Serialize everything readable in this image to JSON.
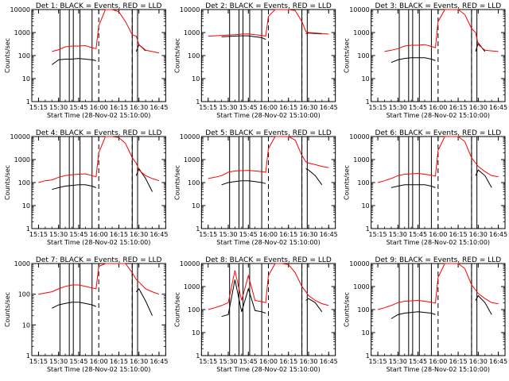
{
  "x_tick_labels": [
    "15:15",
    "15:30",
    "15:45",
    "16:00",
    "16:15",
    "16:30",
    "16:45"
  ],
  "y_tick_labels": [
    "1",
    "10",
    "100",
    "1000",
    "10000"
  ],
  "xlabel": "Start Time (28-Nov-02 15:10:00)",
  "ylabel": "Counts/sec",
  "colors": {
    "events": "#000000",
    "lld": "#ff0000"
  },
  "chart_data": [
    {
      "type": "line",
      "title": "Det 1: BLACK = Events, RED = LLD",
      "xlabel": "Start Time (28-Nov-02 15:10:00)",
      "ylabel": "Counts/sec",
      "xlim": [
        "15:10",
        "16:50"
      ],
      "ylim": [
        1,
        10000
      ],
      "yscale": "log",
      "x": [
        "15:20",
        "15:25",
        "15:30",
        "15:35",
        "15:40",
        "15:45",
        "15:50",
        "15:55",
        "15:58",
        "16:00",
        "16:05",
        "16:10",
        "16:15",
        "16:20",
        "16:25",
        "16:28",
        "16:30",
        "16:35",
        "16:40",
        "16:45"
      ],
      "series": [
        {
          "name": "Events",
          "color": "#000000",
          "values": [
            null,
            40,
            65,
            70,
            70,
            75,
            70,
            65,
            60,
            null,
            null,
            null,
            null,
            null,
            null,
            150,
            300,
            160,
            null,
            null
          ]
        },
        {
          "name": "LLD",
          "color": "#ff0000",
          "values": [
            null,
            150,
            180,
            240,
            260,
            260,
            270,
            220,
            200,
            2000,
            10000,
            10000,
            8000,
            3000,
            800,
            700,
            300,
            170,
            150,
            130
          ]
        }
      ],
      "vertical_lines": [
        "15:31",
        "15:38",
        "15:41",
        "15:46",
        "15:55",
        "16:25",
        "16:29"
      ],
      "dashed_lines": [
        "16:00",
        "16:25"
      ]
    },
    {
      "type": "line",
      "title": "Det 2: BLACK = Events, RED = LLD",
      "xlabel": "Start Time (28-Nov-02 15:10:00)",
      "ylabel": "Counts/sec",
      "xlim": [
        "15:10",
        "16:50"
      ],
      "ylim": [
        1,
        10000
      ],
      "yscale": "log",
      "x": [
        "15:15",
        "15:20",
        "15:25",
        "15:30",
        "15:35",
        "15:40",
        "15:45",
        "15:50",
        "15:55",
        "15:58",
        "16:00",
        "16:05",
        "16:10",
        "16:15",
        "16:20",
        "16:25",
        "16:28",
        "16:30",
        "16:35",
        "16:40",
        "16:45"
      ],
      "series": [
        {
          "name": "Events",
          "color": "#000000",
          "values": [
            null,
            null,
            650,
            680,
            700,
            720,
            720,
            650,
            600,
            500,
            null,
            null,
            null,
            null,
            null,
            null,
            900,
            950,
            900,
            880,
            null
          ]
        },
        {
          "name": "LLD",
          "color": "#ff0000",
          "values": [
            700,
            720,
            750,
            780,
            800,
            850,
            870,
            800,
            750,
            700,
            5000,
            10000,
            10000,
            10000,
            9000,
            3000,
            1100,
            1000,
            950,
            900,
            850
          ]
        }
      ],
      "vertical_lines": [
        "15:31",
        "15:38",
        "15:41",
        "15:46",
        "15:55",
        "16:25",
        "16:29"
      ],
      "dashed_lines": [
        "16:00",
        "16:25"
      ]
    },
    {
      "type": "line",
      "title": "Det 3: BLACK = Events, RED = LLD",
      "xlabel": "Start Time (28-Nov-02 15:10:00)",
      "ylabel": "Counts/sec",
      "xlim": [
        "15:10",
        "16:50"
      ],
      "ylim": [
        1,
        10000
      ],
      "yscale": "log",
      "x": [
        "15:20",
        "15:25",
        "15:30",
        "15:35",
        "15:40",
        "15:45",
        "15:50",
        "15:55",
        "15:58",
        "16:00",
        "16:05",
        "16:10",
        "16:15",
        "16:20",
        "16:25",
        "16:28",
        "16:30",
        "16:35",
        "16:40",
        "16:45"
      ],
      "series": [
        {
          "name": "Events",
          "color": "#000000",
          "values": [
            null,
            50,
            65,
            75,
            80,
            80,
            80,
            70,
            60,
            null,
            null,
            null,
            null,
            null,
            null,
            150,
            350,
            150,
            null,
            null
          ]
        },
        {
          "name": "LLD",
          "color": "#ff0000",
          "values": [
            150,
            170,
            200,
            260,
            280,
            280,
            300,
            250,
            220,
            3000,
            10000,
            10000,
            10000,
            6000,
            1500,
            1000,
            300,
            170,
            160,
            150
          ]
        }
      ],
      "vertical_lines": [
        "15:31",
        "15:38",
        "15:41",
        "15:46",
        "15:55",
        "16:25",
        "16:29"
      ],
      "dashed_lines": [
        "16:00",
        "16:25"
      ]
    },
    {
      "type": "line",
      "title": "Det 4: BLACK = Events, RED = LLD",
      "xlabel": "Start Time (28-Nov-02 15:10:00)",
      "ylabel": "Counts/sec",
      "xlim": [
        "15:10",
        "16:50"
      ],
      "ylim": [
        1,
        10000
      ],
      "yscale": "log",
      "x": [
        "15:15",
        "15:20",
        "15:25",
        "15:30",
        "15:35",
        "15:40",
        "15:45",
        "15:50",
        "15:55",
        "15:58",
        "16:00",
        "16:05",
        "16:10",
        "16:15",
        "16:20",
        "16:25",
        "16:28",
        "16:30",
        "16:35",
        "16:40",
        "16:45"
      ],
      "series": [
        {
          "name": "Events",
          "color": "#000000",
          "values": [
            null,
            null,
            50,
            60,
            70,
            75,
            80,
            80,
            70,
            60,
            null,
            null,
            null,
            null,
            null,
            null,
            200,
            400,
            150,
            40,
            null
          ]
        },
        {
          "name": "LLD",
          "color": "#ff0000",
          "values": [
            100,
            120,
            130,
            170,
            200,
            220,
            230,
            240,
            200,
            180,
            2000,
            10000,
            10000,
            9000,
            5000,
            1200,
            700,
            350,
            200,
            150,
            120
          ]
        }
      ],
      "vertical_lines": [
        "15:31",
        "15:38",
        "15:41",
        "15:46",
        "15:55",
        "16:25",
        "16:29"
      ],
      "dashed_lines": [
        "16:00",
        "16:25"
      ]
    },
    {
      "type": "line",
      "title": "Det 5: BLACK = Events, RED = LLD",
      "xlabel": "Start Time (28-Nov-02 15:10:00)",
      "ylabel": "Counts/sec",
      "xlim": [
        "15:10",
        "16:50"
      ],
      "ylim": [
        1,
        10000
      ],
      "yscale": "log",
      "x": [
        "15:15",
        "15:20",
        "15:25",
        "15:30",
        "15:35",
        "15:40",
        "15:45",
        "15:50",
        "15:55",
        "15:58",
        "16:00",
        "16:05",
        "16:10",
        "16:15",
        "16:20",
        "16:25",
        "16:28",
        "16:30",
        "16:35",
        "16:40",
        "16:45"
      ],
      "series": [
        {
          "name": "Events",
          "color": "#000000",
          "values": [
            null,
            null,
            80,
            100,
            110,
            120,
            120,
            110,
            100,
            90,
            null,
            null,
            null,
            null,
            null,
            null,
            400,
            350,
            200,
            80,
            null
          ]
        },
        {
          "name": "LLD",
          "color": "#ff0000",
          "values": [
            150,
            170,
            200,
            280,
            320,
            330,
            340,
            320,
            300,
            280,
            3000,
            10000,
            10000,
            10000,
            7000,
            1500,
            800,
            700,
            600,
            500,
            450
          ]
        }
      ],
      "vertical_lines": [
        "15:31",
        "15:38",
        "15:41",
        "15:46",
        "15:55",
        "16:25",
        "16:29"
      ],
      "dashed_lines": [
        "16:00",
        "16:25"
      ]
    },
    {
      "type": "line",
      "title": "Det 6: BLACK = Events, RED = LLD",
      "xlabel": "Start Time (28-Nov-02 15:10:00)",
      "ylabel": "Counts/sec",
      "xlim": [
        "15:10",
        "16:50"
      ],
      "ylim": [
        1,
        10000
      ],
      "yscale": "log",
      "x": [
        "15:15",
        "15:20",
        "15:25",
        "15:30",
        "15:35",
        "15:40",
        "15:45",
        "15:50",
        "15:55",
        "15:58",
        "16:00",
        "16:05",
        "16:10",
        "16:15",
        "16:20",
        "16:25",
        "16:28",
        "16:30",
        "16:35",
        "16:40",
        "16:45"
      ],
      "series": [
        {
          "name": "Events",
          "color": "#000000",
          "values": [
            null,
            null,
            60,
            70,
            80,
            80,
            80,
            80,
            70,
            60,
            null,
            null,
            null,
            null,
            null,
            null,
            200,
            350,
            200,
            60,
            null
          ]
        },
        {
          "name": "LLD",
          "color": "#ff0000",
          "values": [
            100,
            120,
            150,
            200,
            230,
            240,
            250,
            230,
            210,
            190,
            2500,
            10000,
            10000,
            10000,
            6000,
            1200,
            700,
            500,
            300,
            200,
            180
          ]
        }
      ],
      "vertical_lines": [
        "15:31",
        "15:38",
        "15:41",
        "15:46",
        "15:55",
        "16:25",
        "16:29"
      ],
      "dashed_lines": [
        "16:00",
        "16:25"
      ]
    },
    {
      "type": "line",
      "title": "Det 7: BLACK = Events, RED = LLD",
      "xlabel": "Start Time (28-Nov-02 15:10:00)",
      "ylabel": "Counts/sec",
      "xlim": [
        "15:10",
        "16:50"
      ],
      "ylim": [
        1,
        1000
      ],
      "yscale": "log",
      "x": [
        "15:15",
        "15:20",
        "15:25",
        "15:30",
        "15:35",
        "15:40",
        "15:45",
        "15:50",
        "15:55",
        "15:58",
        "16:00",
        "16:05",
        "16:10",
        "16:15",
        "16:20",
        "16:25",
        "16:28",
        "16:30",
        "16:35",
        "16:40",
        "16:45"
      ],
      "series": [
        {
          "name": "Events",
          "color": "#000000",
          "values": [
            null,
            null,
            35,
            45,
            50,
            55,
            55,
            50,
            45,
            40,
            null,
            null,
            null,
            null,
            null,
            null,
            120,
            150,
            60,
            20,
            null
          ]
        },
        {
          "name": "LLD",
          "color": "#ff0000",
          "values": [
            100,
            110,
            120,
            150,
            180,
            200,
            200,
            180,
            160,
            150,
            800,
            1000,
            1000,
            1000,
            1000,
            500,
            300,
            250,
            150,
            120,
            100
          ]
        }
      ],
      "vertical_lines": [
        "15:31",
        "15:38",
        "15:41",
        "15:46",
        "15:55",
        "16:25",
        "16:29"
      ],
      "dashed_lines": [
        "16:00",
        "16:25"
      ]
    },
    {
      "type": "line",
      "title": "Det 8: BLACK = Events, RED = LLD",
      "xlabel": "Start Time (28-Nov-02 15:10:00)",
      "ylabel": "Counts/sec",
      "xlim": [
        "15:10",
        "16:50"
      ],
      "ylim": [
        1,
        10000
      ],
      "yscale": "log",
      "x": [
        "15:15",
        "15:20",
        "15:25",
        "15:30",
        "15:35",
        "15:40",
        "15:45",
        "15:50",
        "15:55",
        "15:58",
        "16:00",
        "16:05",
        "16:10",
        "16:15",
        "16:20",
        "16:25",
        "16:28",
        "16:30",
        "16:35",
        "16:40",
        "16:45"
      ],
      "series": [
        {
          "name": "Events",
          "color": "#000000",
          "values": [
            null,
            null,
            50,
            60,
            2000,
            80,
            800,
            90,
            80,
            70,
            null,
            null,
            null,
            null,
            null,
            null,
            250,
            300,
            200,
            80,
            null
          ]
        },
        {
          "name": "LLD",
          "color": "#ff0000",
          "values": [
            100,
            120,
            150,
            200,
            5000,
            250,
            3000,
            250,
            220,
            200,
            3000,
            10000,
            10000,
            9000,
            4000,
            1000,
            600,
            400,
            250,
            180,
            150
          ]
        }
      ],
      "vertical_lines": [
        "15:31",
        "15:38",
        "15:41",
        "15:46",
        "15:55",
        "16:25",
        "16:29"
      ],
      "dashed_lines": [
        "16:00",
        "16:25"
      ]
    },
    {
      "type": "line",
      "title": "Det 9: BLACK = Events, RED = LLD",
      "xlabel": "Start Time (28-Nov-02 15:10:00)",
      "ylabel": "Counts/sec",
      "xlim": [
        "15:10",
        "16:50"
      ],
      "ylim": [
        1,
        10000
      ],
      "yscale": "log",
      "x": [
        "15:15",
        "15:20",
        "15:25",
        "15:30",
        "15:35",
        "15:40",
        "15:45",
        "15:50",
        "15:55",
        "15:58",
        "16:00",
        "16:05",
        "16:10",
        "16:15",
        "16:20",
        "16:25",
        "16:28",
        "16:30",
        "16:35",
        "16:40",
        "16:45"
      ],
      "series": [
        {
          "name": "Events",
          "color": "#000000",
          "values": [
            null,
            null,
            40,
            60,
            70,
            75,
            80,
            75,
            70,
            60,
            null,
            null,
            null,
            null,
            null,
            null,
            250,
            400,
            200,
            60,
            null
          ]
        },
        {
          "name": "LLD",
          "color": "#ff0000",
          "values": [
            100,
            120,
            150,
            200,
            230,
            240,
            250,
            230,
            210,
            190,
            2500,
            10000,
            10000,
            10000,
            6000,
            1200,
            700,
            500,
            300,
            200,
            180
          ]
        }
      ],
      "vertical_lines": [
        "15:31",
        "15:38",
        "15:41",
        "15:46",
        "15:55",
        "16:25",
        "16:29"
      ],
      "dashed_lines": [
        "16:00",
        "16:25"
      ]
    }
  ]
}
